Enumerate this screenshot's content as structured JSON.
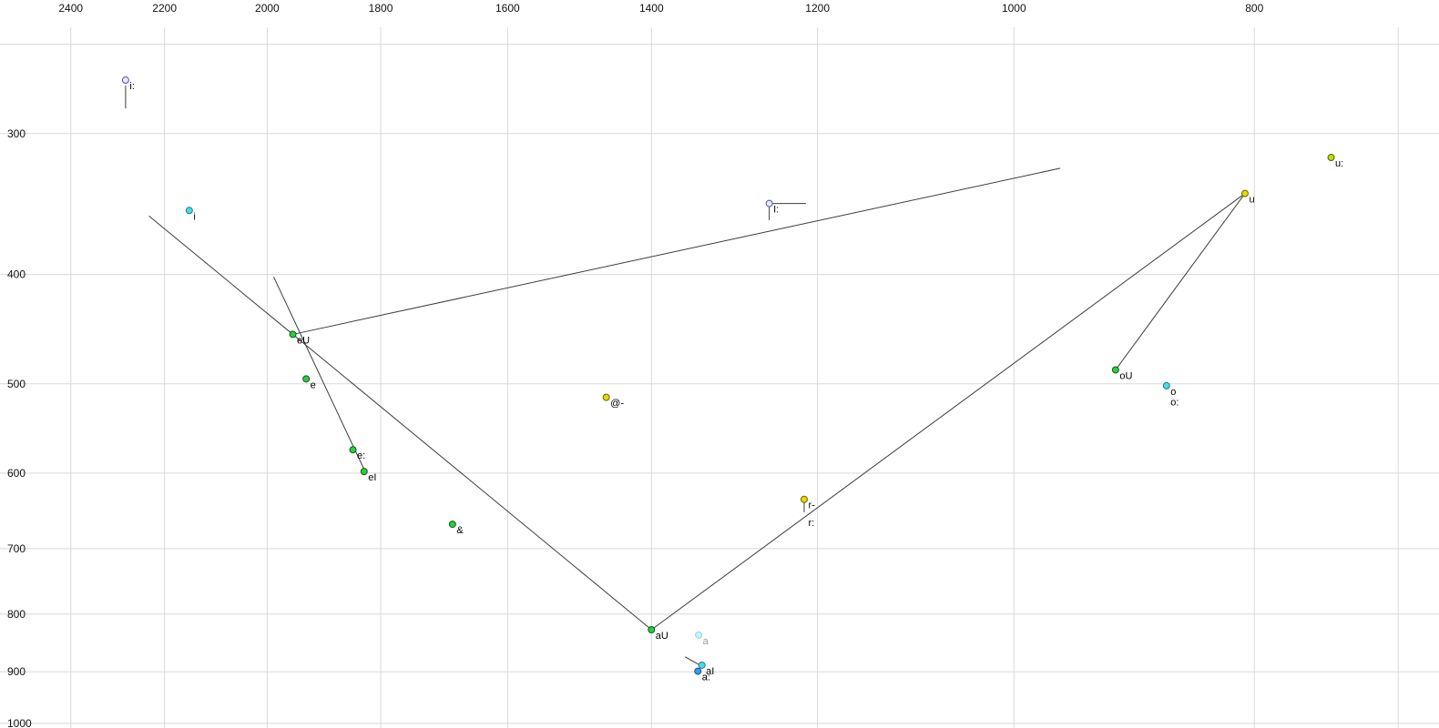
{
  "chart_data": {
    "type": "scatter",
    "title": "",
    "xlabel": "",
    "ylabel": "",
    "description": "Vowel formant chart (F2 horizontal reversed log axis, F1 vertical log axis) with diphthong trajectory lines",
    "x_axis": {
      "scale": "log",
      "reversed": true,
      "left_value": 2563,
      "right_value": 674,
      "ticks": [
        2400,
        2200,
        2000,
        1800,
        1600,
        1400,
        1200,
        1000,
        800
      ],
      "unlabeled_gridlines": [
        700
      ]
    },
    "y_axis": {
      "scale": "log",
      "increases_downward": true,
      "top_value": 241.5,
      "bottom_value": 1009.5,
      "ticks": [
        300,
        400,
        500,
        600,
        700,
        800,
        900,
        1000
      ],
      "unlabeled_gridlines": [
        250
      ]
    },
    "points": [
      {
        "label": "i:",
        "f2": 2281,
        "f1": 269,
        "fill": "#e9e9ff",
        "stroke": "#5050aa",
        "marker": true
      },
      {
        "label": "i",
        "f2": 2150,
        "f1": 351,
        "fill": "#4dd9e8",
        "stroke": "#1b7f8c",
        "marker": true
      },
      {
        "label": "I:",
        "f2": 1255,
        "f1": 346,
        "fill": "#e9e9ff",
        "stroke": "#5050aa",
        "marker": true
      },
      {
        "label": "u:",
        "f2": 745,
        "f1": 315,
        "fill": "#b8e000",
        "stroke": "#4d6600",
        "marker": true
      },
      {
        "label": "u",
        "f2": 807,
        "f1": 339,
        "fill": "#e8d800",
        "stroke": "#6b6400",
        "marker": true
      },
      {
        "label": "eU",
        "f2": 1953,
        "f1": 452,
        "fill": "#2ecc40",
        "stroke": "#0e5c1d",
        "marker": true
      },
      {
        "label": "e",
        "f2": 1929,
        "f1": 495,
        "fill": "#2ecc40",
        "stroke": "#0e5c1d",
        "marker": true
      },
      {
        "label": "e:",
        "f2": 1847,
        "f1": 572,
        "fill": "#2ecc40",
        "stroke": "#0e5c1d",
        "marker": true
      },
      {
        "label": "eI",
        "f2": 1828,
        "f1": 598,
        "fill": "#2ecc40",
        "stroke": "#0e5c1d",
        "marker": true
      },
      {
        "label": "&",
        "f2": 1684,
        "f1": 666,
        "fill": "#2ecc40",
        "stroke": "#0e5c1d",
        "marker": true
      },
      {
        "label": "@-",
        "f2": 1460,
        "f1": 514,
        "fill": "#e8d800",
        "stroke": "#6b6400",
        "marker": true
      },
      {
        "label": "r-",
        "f2": 1215,
        "f1": 633,
        "fill": "#e8d800",
        "stroke": "#6b6400",
        "marker": true
      },
      {
        "label": "r:",
        "f2": 1215,
        "f1": 656,
        "marker": false
      },
      {
        "label": "aU",
        "f2": 1400,
        "f1": 826,
        "fill": "#2ecc40",
        "stroke": "#0e5c1d",
        "marker": true
      },
      {
        "label": "a",
        "f2": 1340,
        "f1": 835,
        "fill": "#c4f2ff",
        "stroke": "#8fd4e6",
        "label_color": "#9a9a9a",
        "marker": true
      },
      {
        "label": "aI",
        "f2": 1336,
        "f1": 888,
        "fill": "#4dd9e8",
        "stroke": "#1b7f8c",
        "marker": true
      },
      {
        "label": "a:",
        "f2": 1341,
        "f1": 899,
        "fill": "#3b9ae0",
        "stroke": "#1b4f8c",
        "marker": true
      },
      {
        "label": "oU",
        "f2": 910,
        "f1": 486,
        "fill": "#2ecc40",
        "stroke": "#0e5c1d",
        "marker": true
      },
      {
        "label": "o",
        "f2": 868,
        "f1": 502,
        "fill": "#4dd9e8",
        "stroke": "#1b7f8c",
        "marker": true
      },
      {
        "label": "o:",
        "f2": 868,
        "f1": 513,
        "marker": false
      }
    ],
    "segments": [
      {
        "name": "i-to-eU",
        "from": [
          2232,
          355
        ],
        "to": [
          1953,
          452
        ]
      },
      {
        "name": "eU-to-upper-right",
        "from": [
          1953,
          452
        ],
        "to": [
          958,
          322
        ]
      },
      {
        "name": "e-cluster-line",
        "from": [
          1988,
          402
        ],
        "to": [
          1825,
          600
        ]
      },
      {
        "name": "eU-to-aU",
        "from": [
          1953,
          452
        ],
        "to": [
          1400,
          826
        ]
      },
      {
        "name": "aU-to-u",
        "from": [
          1400,
          826
        ],
        "to": [
          807,
          339
        ]
      },
      {
        "name": "u-to-oU",
        "from": [
          807,
          339
        ],
        "to": [
          910,
          486
        ]
      },
      {
        "name": "aI-tail",
        "from": [
          1357,
          873
        ],
        "to": [
          1336,
          890
        ]
      },
      {
        "name": "i-long-whisker",
        "from": [
          2281,
          272
        ],
        "to": [
          2281,
          285
        ]
      },
      {
        "name": "I-long-whisker-h",
        "from": [
          1255,
          346
        ],
        "to": [
          1213,
          346
        ]
      },
      {
        "name": "I-long-whisker-v",
        "from": [
          1255,
          346
        ],
        "to": [
          1255,
          358
        ]
      },
      {
        "name": "r-whisker",
        "from": [
          1215,
          633
        ],
        "to": [
          1215,
          650
        ]
      }
    ],
    "grid": true,
    "legend": "none"
  },
  "style": {
    "background": "#ffffff",
    "grid_color": "#d9d9d9",
    "segment_color": "#3c3c3c",
    "tick_text_color": "#111111",
    "point_label_color": "#000000"
  }
}
